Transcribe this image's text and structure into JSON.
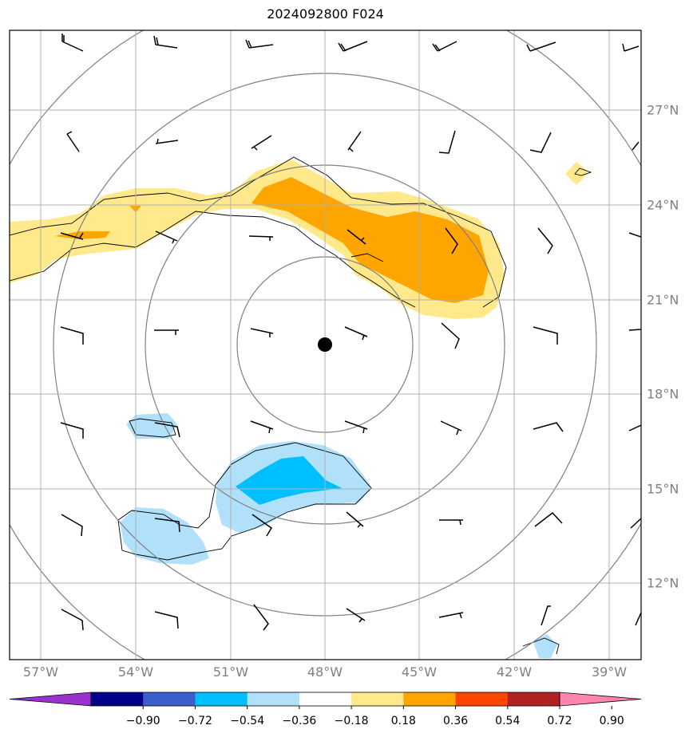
{
  "title": "2024092800 F024",
  "lon_labels": [
    "57°W",
    "54°W",
    "51°W",
    "48°W",
    "45°W",
    "42°W",
    "39°W"
  ],
  "lat_labels": [
    "27°N",
    "24°N",
    "21°N",
    "18°N",
    "15°N",
    "12°N"
  ],
  "colorbar": {
    "ticks": [
      "−0.90",
      "−0.72",
      "−0.54",
      "−0.36",
      "−0.18",
      "0.18",
      "0.36",
      "0.54",
      "0.72",
      "0.90"
    ],
    "colors": [
      "#9a33cc",
      "#00008b",
      "#3a5fcd",
      "#00bfff",
      "#b0e0fa",
      "#ffffff",
      "#ffe98a",
      "#ffa500",
      "#ff4500",
      "#b22222",
      "#ff85b0"
    ]
  },
  "map": {
    "center": {
      "lon": -48.0,
      "lat": 19.5
    },
    "colors": {
      "light_blue": "#b0e0fa",
      "blue": "#00bfff",
      "light_yellow": "#ffe98a",
      "orange": "#ffa500",
      "grid": "#b0b0b0",
      "rings": "#808080"
    }
  }
}
